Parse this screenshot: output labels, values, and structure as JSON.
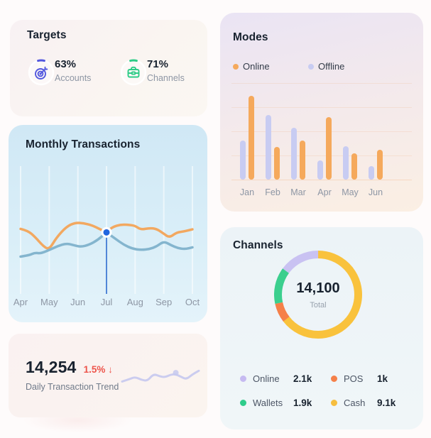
{
  "cards": {
    "targets": {
      "title": "Targets",
      "items": [
        {
          "icon": "target-icon",
          "value": "63%",
          "label": "Accounts",
          "accent": "#5257de"
        },
        {
          "icon": "briefcase-icon",
          "value": "71%",
          "label": "Channels",
          "accent": "#2ecc87"
        }
      ]
    },
    "modes": {
      "title": "Modes"
    },
    "monthly": {
      "title": "Monthly Transactions"
    },
    "daily": {
      "value": "14,254",
      "change": "1.5%",
      "change_direction": "↓",
      "change_color": "#ed544b",
      "label": "Daily Transaction Trend"
    },
    "channels": {
      "title": "Channels",
      "total_value": "14,100",
      "total_label": "Total",
      "legend": [
        {
          "label": "Online",
          "value": "2.1k",
          "color": "#c6baf1"
        },
        {
          "label": "POS",
          "value": "1k",
          "color": "#f58049"
        },
        {
          "label": "Wallets",
          "value": "1.9k",
          "color": "#2ecc8b"
        },
        {
          "label": "Cash",
          "value": "9.1k",
          "color": "#f6be3f"
        }
      ]
    }
  },
  "chart_data": [
    {
      "id": "modes-bars",
      "type": "bar",
      "title": "Modes",
      "categories": [
        "Jan",
        "Feb",
        "Mar",
        "Apr",
        "May",
        "Jun"
      ],
      "series": [
        {
          "name": "Online",
          "color": "#f5a95c",
          "values": [
            100,
            39,
            47,
            75,
            31,
            36
          ]
        },
        {
          "name": "Offline",
          "color": "#c8ccf2",
          "values": [
            47,
            77,
            62,
            23,
            40,
            16
          ]
        }
      ],
      "ylim": [
        0,
        100
      ],
      "grid": "horizontal",
      "legend_position": "top"
    },
    {
      "id": "monthly-line",
      "type": "line",
      "title": "Monthly Transactions",
      "categories": [
        "Apr",
        "May",
        "Jun",
        "Jul",
        "Aug",
        "Sep",
        "Oct"
      ],
      "xlabel": "",
      "ylabel": "",
      "ylim": [
        0,
        100
      ],
      "grid": "vertical",
      "series": [
        {
          "name": "series-orange",
          "color": "#f2a860",
          "points": [
            [
              0,
              80
            ],
            [
              0.25,
              76
            ],
            [
              0.5,
              62
            ],
            [
              0.8,
              40
            ],
            [
              1,
              33
            ],
            [
              1.25,
              60
            ],
            [
              1.6,
              85
            ],
            [
              1.9,
              94
            ],
            [
              2.2,
              93
            ],
            [
              2.5,
              88
            ],
            [
              2.75,
              80
            ],
            [
              3,
              72
            ],
            [
              3.2,
              84
            ],
            [
              3.5,
              90
            ],
            [
              3.8,
              89
            ],
            [
              4,
              87
            ],
            [
              4.2,
              78
            ],
            [
              4.5,
              82
            ],
            [
              4.75,
              80
            ],
            [
              5,
              69
            ],
            [
              5.2,
              60
            ],
            [
              5.45,
              72
            ],
            [
              5.7,
              74
            ],
            [
              6,
              79
            ]
          ]
        },
        {
          "name": "series-blue",
          "color": "#84b5ce",
          "points": [
            [
              0,
              17
            ],
            [
              0.3,
              20
            ],
            [
              0.5,
              26
            ],
            [
              0.7,
              24
            ],
            [
              1,
              32
            ],
            [
              1.3,
              41
            ],
            [
              1.6,
              47
            ],
            [
              1.85,
              43
            ],
            [
              2.1,
              39
            ],
            [
              2.4,
              44
            ],
            [
              2.7,
              55
            ],
            [
              3,
              72
            ],
            [
              3.3,
              58
            ],
            [
              3.6,
              44
            ],
            [
              3.9,
              35
            ],
            [
              4.2,
              32
            ],
            [
              4.5,
              34
            ],
            [
              4.75,
              40
            ],
            [
              5,
              52
            ],
            [
              5.25,
              43
            ],
            [
              5.5,
              36
            ],
            [
              5.75,
              34
            ],
            [
              6,
              38
            ]
          ]
        }
      ],
      "active_marker": {
        "x": 3,
        "y": 72,
        "category": "Jul",
        "color": "#2166df",
        "line_color": "#5186d7"
      }
    },
    {
      "id": "channels-donut",
      "type": "pie",
      "title": "Channels",
      "total_value": 14100,
      "total_display": "14,100",
      "total_label": "Total",
      "start_angle": "top",
      "direction": "clockwise",
      "slices": [
        {
          "label": "Cash",
          "value": 9100,
          "display": "9.1k",
          "color": "#f9c23c"
        },
        {
          "label": "POS",
          "value": 1000,
          "display": "1k",
          "color": "#f58049"
        },
        {
          "label": "Wallets",
          "value": 1900,
          "display": "1.9k",
          "color": "#3bcf8e"
        },
        {
          "label": "Online",
          "value": 2100,
          "display": "2.1k",
          "color": "#c9c2f2"
        }
      ]
    },
    {
      "id": "daily-sparkline",
      "type": "line",
      "title": "Daily Transaction Trend",
      "series": [
        {
          "name": "trend",
          "color": "#c5c8ee",
          "points": [
            [
              0,
              15
            ],
            [
              9,
              28
            ],
            [
              17,
              42
            ],
            [
              25,
              25
            ],
            [
              33,
              18
            ],
            [
              41,
              60
            ],
            [
              49,
              45
            ],
            [
              56,
              40
            ],
            [
              63,
              55
            ],
            [
              70,
              58
            ],
            [
              77,
              42
            ],
            [
              84,
              28
            ],
            [
              91,
              55
            ],
            [
              100,
              78
            ]
          ]
        }
      ],
      "marker_index": 9
    }
  ]
}
